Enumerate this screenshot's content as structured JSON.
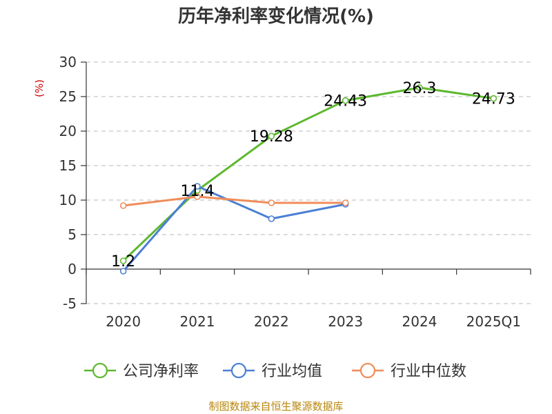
{
  "chart_data": {
    "type": "line",
    "title": "历年净利率变化情况(%)",
    "ylabel": "(%)",
    "categories": [
      "2020",
      "2021",
      "2022",
      "2023",
      "2024",
      "2025Q1"
    ],
    "ylim": [
      -5,
      30
    ],
    "yticks": [
      -5,
      0,
      5,
      10,
      15,
      20,
      25,
      30
    ],
    "grid": true,
    "legend_position": "bottom",
    "series": [
      {
        "name": "公司净利率",
        "color": "#5cb82e",
        "values": [
          1.2,
          11.4,
          19.28,
          24.43,
          26.3,
          24.73
        ],
        "labels": [
          "1.2",
          "11.4",
          "19.28",
          "24.43",
          "26.3",
          "24.73"
        ]
      },
      {
        "name": "行业均值",
        "color": "#4a7fd4",
        "values": [
          -0.3,
          12.0,
          7.3,
          9.4,
          null,
          null
        ]
      },
      {
        "name": "行业中位数",
        "color": "#f08c5a",
        "values": [
          9.2,
          10.5,
          9.6,
          9.6,
          null,
          null
        ]
      }
    ]
  },
  "source": "制图数据来自恒生聚源数据库"
}
